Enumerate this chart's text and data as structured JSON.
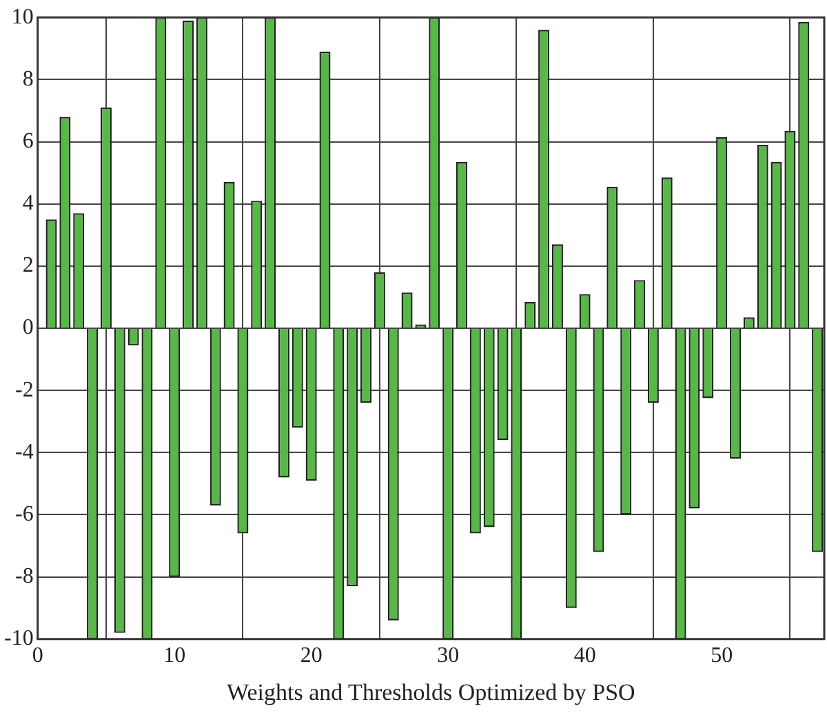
{
  "chart_data": {
    "type": "bar",
    "xlabel": "Weights and Thresholds Optimized by PSO",
    "x": [
      1,
      2,
      3,
      4,
      5,
      6,
      7,
      8,
      9,
      10,
      11,
      12,
      13,
      14,
      15,
      16,
      17,
      18,
      19,
      20,
      21,
      22,
      23,
      24,
      25,
      26,
      27,
      28,
      29,
      30,
      31,
      32,
      33,
      34,
      35,
      36,
      37,
      38,
      39,
      40,
      41,
      42,
      43,
      44,
      45,
      46,
      47,
      48,
      49,
      50,
      51,
      52,
      53,
      54,
      55,
      56,
      57
    ],
    "values": [
      3.5,
      6.8,
      3.7,
      -10,
      7.1,
      -9.8,
      -0.55,
      -10,
      10,
      -8.0,
      9.9,
      10,
      -5.7,
      4.7,
      -6.6,
      4.1,
      10,
      -4.8,
      -3.2,
      -4.9,
      8.9,
      -10,
      -8.3,
      -2.4,
      1.8,
      -9.4,
      1.15,
      0.12,
      10,
      -10,
      5.35,
      -6.6,
      -6.4,
      -3.6,
      -10,
      0.85,
      9.6,
      2.7,
      -9.0,
      1.1,
      -7.2,
      4.55,
      -6.0,
      1.55,
      -2.4,
      4.85,
      -10,
      -5.8,
      -2.25,
      6.15,
      -4.2,
      0.35,
      5.9,
      5.35,
      6.35,
      9.85,
      -7.2
    ],
    "color": "#56b845",
    "xlim": [
      0,
      57.5
    ],
    "xticks": [
      0,
      10,
      20,
      30,
      40,
      50
    ],
    "ylim": [
      -10,
      10
    ],
    "yticks": [
      -10,
      -8,
      -6,
      -4,
      -2,
      0,
      2,
      4,
      6,
      8,
      10
    ],
    "grid": true
  }
}
